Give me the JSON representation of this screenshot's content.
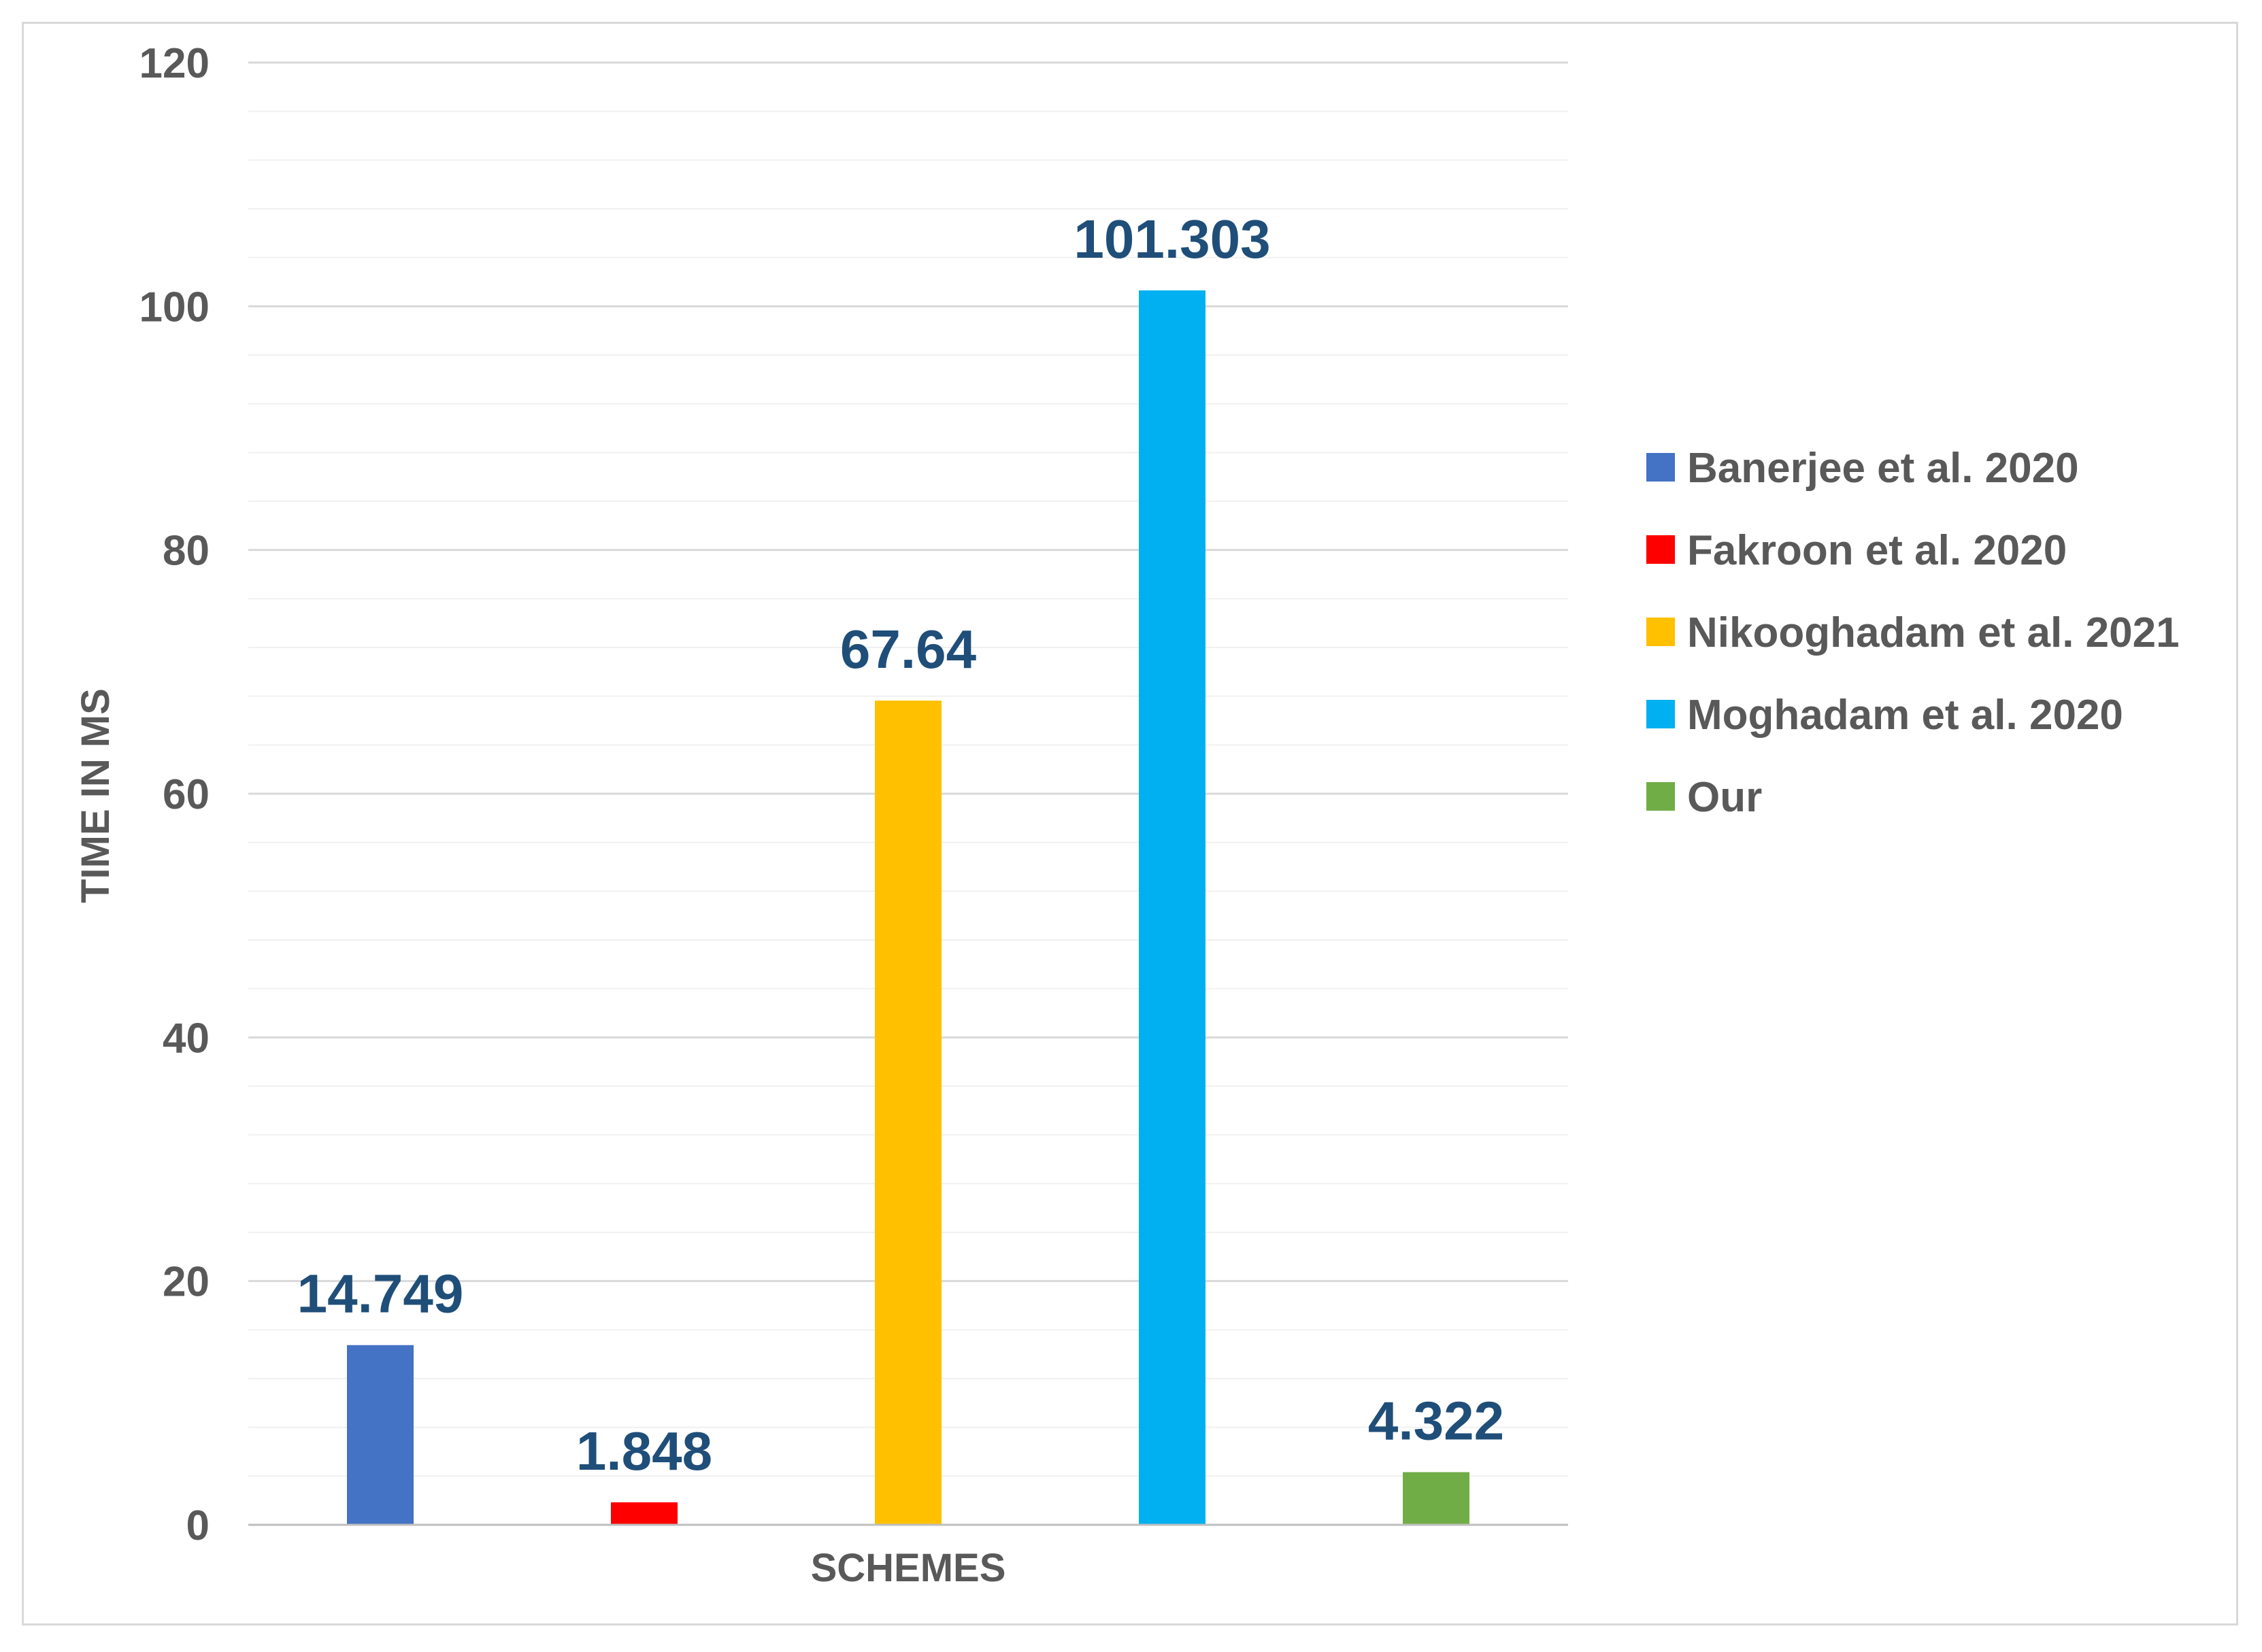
{
  "chart_data": {
    "type": "bar",
    "title": "",
    "xlabel": "SCHEMES",
    "ylabel": "TIME IN MS",
    "ylim": [
      0,
      120
    ],
    "yticks": [
      0,
      20,
      40,
      60,
      80,
      100,
      120
    ],
    "grid": true,
    "legend_position": "right",
    "series": [
      {
        "name": "Banerjee et al. 2020",
        "value": 14.749,
        "label": "14.749",
        "color": "#4472c4"
      },
      {
        "name": "Fakroon et al. 2020",
        "value": 1.848,
        "label": "1.848",
        "color": "#ff0000"
      },
      {
        "name": "Nikooghadam et al. 2021",
        "value": 67.64,
        "label": "67.64",
        "color": "#ffc000"
      },
      {
        "name": "Moghadam et al. 2020",
        "value": 101.303,
        "label": "101.303",
        "color": "#00b0f0"
      },
      {
        "name": "Our",
        "value": 4.322,
        "label": "4.322",
        "color": "#70ad47"
      }
    ]
  }
}
